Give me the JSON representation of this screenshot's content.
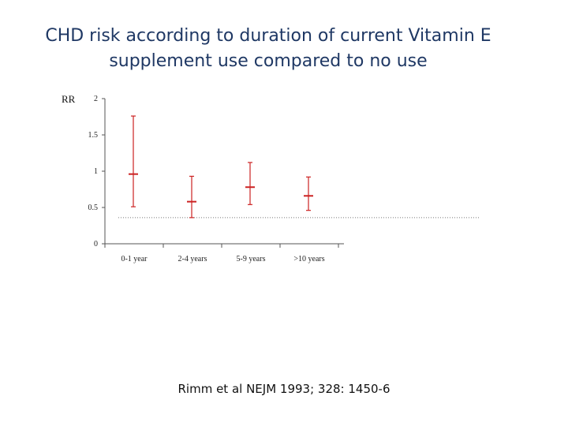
{
  "slide": {
    "title_line1": "CHD risk according to duration of current Vitamin E",
    "title_line2": "supplement use compared to no use",
    "citation": "Rimm et al NEJM 1993; 328: 1450-6"
  },
  "chart_data": {
    "type": "scatter",
    "title": "",
    "ylabel": "RR",
    "xlabel": "",
    "categories": [
      "0-1 year",
      "2-4 years",
      "5-9 years",
      ">10 years"
    ],
    "estimate": [
      0.96,
      0.58,
      0.78,
      0.66
    ],
    "ci_lower": [
      0.51,
      0.36,
      0.54,
      0.46
    ],
    "ci_upper": [
      1.76,
      0.93,
      1.12,
      0.92
    ],
    "ylim": [
      0,
      2
    ],
    "yticks": [
      "0",
      "0.5",
      "1",
      "1.5",
      "2"
    ],
    "reference_line_y": 0.36,
    "colors": {
      "series": "#cc2222",
      "axis": "#555555",
      "reference": "#777777"
    },
    "grid": false
  }
}
